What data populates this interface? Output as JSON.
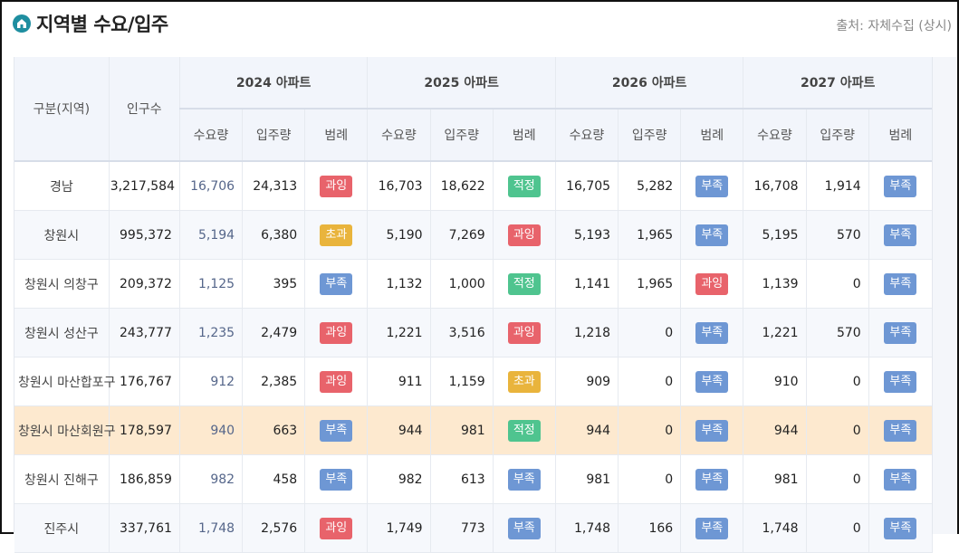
{
  "header": {
    "title": "지역별 수요/입주",
    "source": "출처: 자체수집 (상시)",
    "icon": "home-icon"
  },
  "table": {
    "region_header": "구분(지역)",
    "population_header": "인구수",
    "years": [
      "2024 아파트",
      "2025 아파트",
      "2026 아파트",
      "2027 아파트"
    ],
    "sub_headers": [
      "수요량",
      "입주량",
      "범례"
    ],
    "badge_colors": {
      "과잉": "#e8636b",
      "초과": "#e9b43c",
      "적정": "#4fc48f",
      "부족": "#6e97d4"
    },
    "rows": [
      {
        "region": "경남",
        "population": "3,217,584",
        "highlight": false,
        "years": [
          {
            "demand": "16,706",
            "supply": "24,313",
            "legend": "과잉"
          },
          {
            "demand": "16,703",
            "supply": "18,622",
            "legend": "적정"
          },
          {
            "demand": "16,705",
            "supply": "5,282",
            "legend": "부족"
          },
          {
            "demand": "16,708",
            "supply": "1,914",
            "legend": "부족"
          }
        ]
      },
      {
        "region": "창원시",
        "population": "995,372",
        "highlight": false,
        "years": [
          {
            "demand": "5,194",
            "supply": "6,380",
            "legend": "초과"
          },
          {
            "demand": "5,190",
            "supply": "7,269",
            "legend": "과잉"
          },
          {
            "demand": "5,193",
            "supply": "1,965",
            "legend": "부족"
          },
          {
            "demand": "5,195",
            "supply": "570",
            "legend": "부족"
          }
        ]
      },
      {
        "region": "창원시 의창구",
        "population": "209,372",
        "highlight": false,
        "years": [
          {
            "demand": "1,125",
            "supply": "395",
            "legend": "부족"
          },
          {
            "demand": "1,132",
            "supply": "1,000",
            "legend": "적정"
          },
          {
            "demand": "1,141",
            "supply": "1,965",
            "legend": "과잉"
          },
          {
            "demand": "1,139",
            "supply": "0",
            "legend": "부족"
          }
        ]
      },
      {
        "region": "창원시 성산구",
        "population": "243,777",
        "highlight": false,
        "years": [
          {
            "demand": "1,235",
            "supply": "2,479",
            "legend": "과잉"
          },
          {
            "demand": "1,221",
            "supply": "3,516",
            "legend": "과잉"
          },
          {
            "demand": "1,218",
            "supply": "0",
            "legend": "부족"
          },
          {
            "demand": "1,221",
            "supply": "570",
            "legend": "부족"
          }
        ]
      },
      {
        "region": "창원시 마산합포구",
        "population": "176,767",
        "highlight": false,
        "years": [
          {
            "demand": "912",
            "supply": "2,385",
            "legend": "과잉"
          },
          {
            "demand": "911",
            "supply": "1,159",
            "legend": "초과"
          },
          {
            "demand": "909",
            "supply": "0",
            "legend": "부족"
          },
          {
            "demand": "910",
            "supply": "0",
            "legend": "부족"
          }
        ]
      },
      {
        "region": "창원시 마산회원구",
        "population": "178,597",
        "highlight": true,
        "years": [
          {
            "demand": "940",
            "supply": "663",
            "legend": "부족"
          },
          {
            "demand": "944",
            "supply": "981",
            "legend": "적정"
          },
          {
            "demand": "944",
            "supply": "0",
            "legend": "부족"
          },
          {
            "demand": "944",
            "supply": "0",
            "legend": "부족"
          }
        ]
      },
      {
        "region": "창원시 진해구",
        "population": "186,859",
        "highlight": false,
        "years": [
          {
            "demand": "982",
            "supply": "458",
            "legend": "부족"
          },
          {
            "demand": "982",
            "supply": "613",
            "legend": "부족"
          },
          {
            "demand": "981",
            "supply": "0",
            "legend": "부족"
          },
          {
            "demand": "981",
            "supply": "0",
            "legend": "부족"
          }
        ]
      },
      {
        "region": "진주시",
        "population": "337,761",
        "highlight": false,
        "years": [
          {
            "demand": "1,748",
            "supply": "2,576",
            "legend": "과잉"
          },
          {
            "demand": "1,749",
            "supply": "773",
            "legend": "부족"
          },
          {
            "demand": "1,748",
            "supply": "166",
            "legend": "부족"
          },
          {
            "demand": "1,748",
            "supply": "0",
            "legend": "부족"
          }
        ]
      }
    ]
  }
}
